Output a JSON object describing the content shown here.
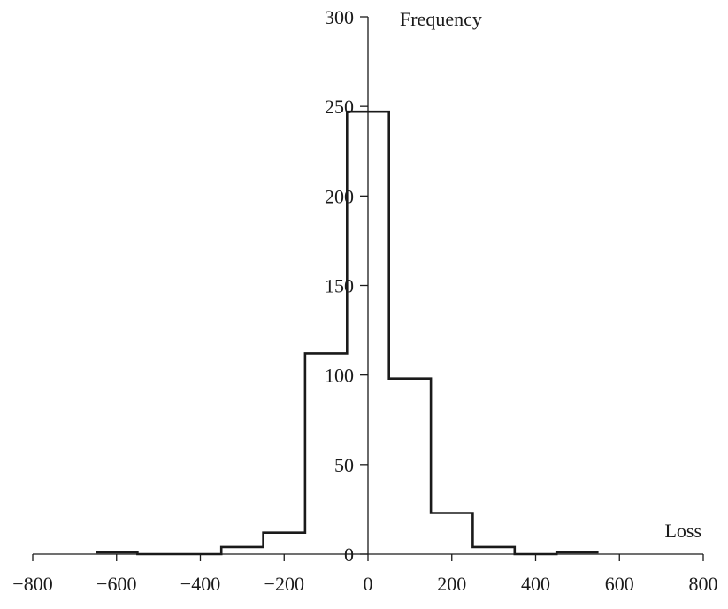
{
  "chart_data": {
    "type": "bar",
    "subtype": "histogram-step",
    "title": "",
    "xlabel": "Loss",
    "ylabel": "Frequency",
    "xlim": [
      -800,
      800
    ],
    "ylim": [
      0,
      300
    ],
    "x_ticks": [
      -800,
      -600,
      -400,
      -200,
      0,
      200,
      400,
      600,
      800
    ],
    "x_tick_labels": [
      "−800",
      "−600",
      "−400",
      "−200",
      "0",
      "200",
      "400",
      "600",
      "800"
    ],
    "y_ticks": [
      0,
      50,
      100,
      150,
      200,
      250,
      300
    ],
    "y_tick_labels": [
      "0",
      "50",
      "100",
      "150",
      "200",
      "250",
      "300"
    ],
    "bin_edges": [
      -650,
      -550,
      -450,
      -350,
      -250,
      -150,
      -50,
      50,
      150,
      250,
      350,
      450,
      550
    ],
    "values": [
      1,
      0,
      0,
      4,
      12,
      112,
      247,
      98,
      23,
      4,
      0,
      1
    ],
    "grid": false,
    "legend": "none",
    "colors": {
      "line": "#1a1a1a",
      "background": "#ffffff"
    }
  }
}
